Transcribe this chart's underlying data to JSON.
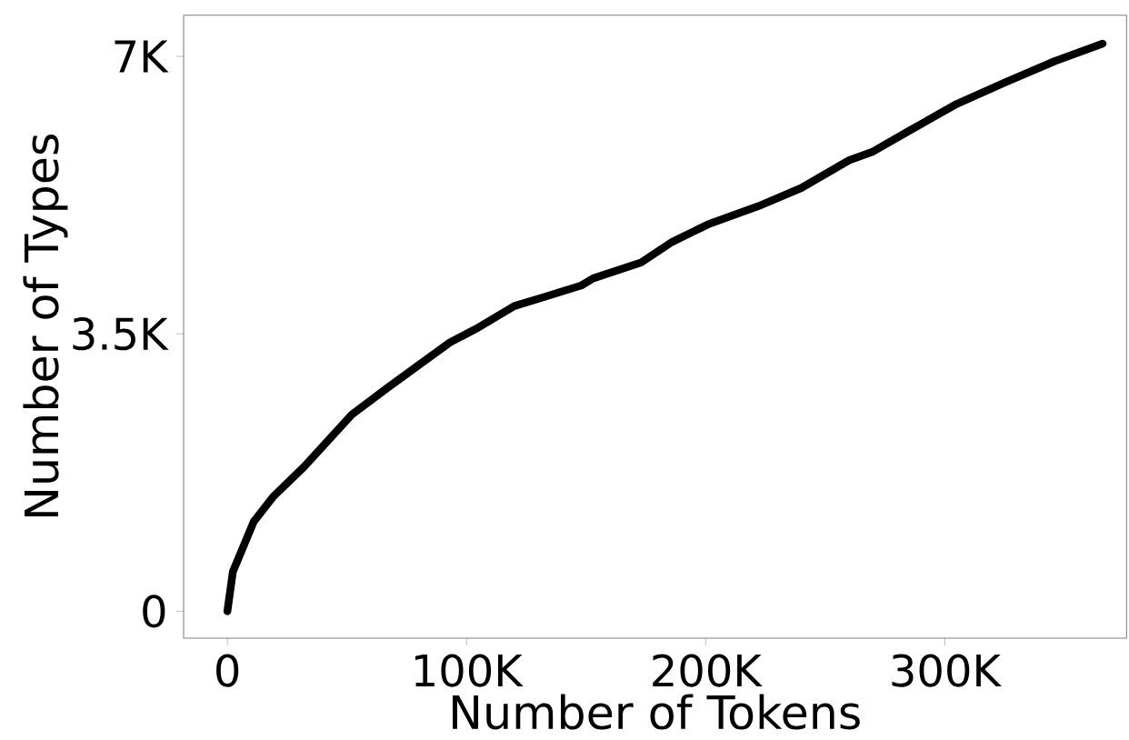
{
  "chart_data": {
    "type": "line",
    "xlabel": "Number of Tokens",
    "ylabel": "Number of Types",
    "x": [
      0,
      2300,
      11000,
      19000,
      32000,
      52000,
      67000,
      93000,
      105000,
      120000,
      133000,
      148000,
      153000,
      173000,
      186000,
      201000,
      222000,
      240000,
      260000,
      270000,
      285000,
      305000,
      325000,
      346000,
      366000
    ],
    "series": [
      {
        "color": "#000000",
        "values": [
          0,
          500,
          1130,
          1440,
          1820,
          2480,
          2820,
          3390,
          3580,
          3850,
          3970,
          4110,
          4200,
          4400,
          4660,
          4880,
          5110,
          5340,
          5690,
          5800,
          6060,
          6400,
          6670,
          6940,
          7160
        ]
      }
    ],
    "xlim": [
      -18300,
      376000
    ],
    "ylim": [
      -340,
      7520
    ],
    "xticks": [
      {
        "value": 0,
        "label": "0"
      },
      {
        "value": 100000,
        "label": "100K"
      },
      {
        "value": 200000,
        "label": "200K"
      },
      {
        "value": 300000,
        "label": "300K"
      }
    ],
    "yticks": [
      {
        "value": 0,
        "label": "0"
      },
      {
        "value": 3500,
        "label": "3.5K"
      },
      {
        "value": 7000,
        "label": "7K"
      }
    ],
    "grid": false,
    "marker": "none",
    "line_style": "solid"
  }
}
